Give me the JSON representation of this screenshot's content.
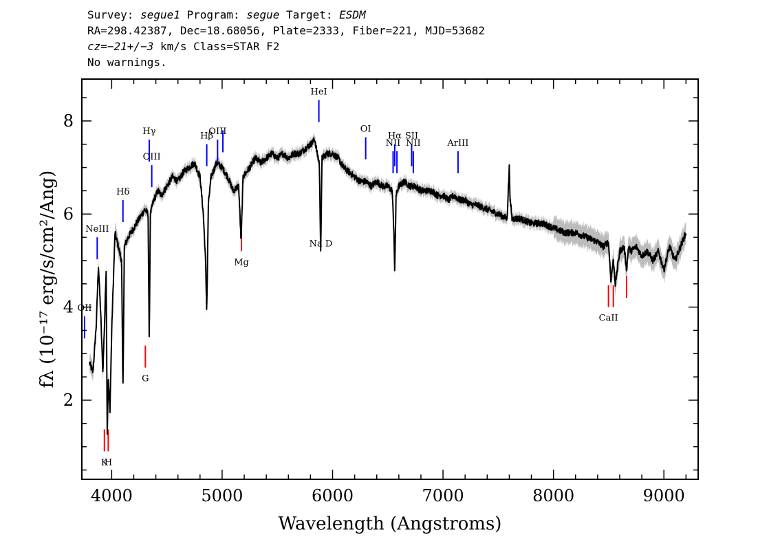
{
  "header": {
    "line1": {
      "survey_label": "Survey:",
      "survey": "segue1",
      "program_label": "Program:",
      "program": "segue",
      "target_label": "Target:",
      "target": "ESDM"
    },
    "line2": "RA=298.42387, Dec=18.68056, Plate=2333, Fiber=221, MJD=53682",
    "line3": {
      "cz": "cz=−21+/−3",
      "rest": " km/s Class=STAR F2"
    },
    "line4": "No warnings."
  },
  "colors": {
    "spectrum": "#000000",
    "error_band": "#bcbcbc",
    "emission": "#0000ff",
    "absorption": "#ff0000"
  },
  "chart_data": {
    "type": "line",
    "xlabel": "Wavelength (Angstroms)",
    "ylabel": "fλ (10⁻¹⁷ erg/s/cm²/Ang)",
    "xlim": [
      3730,
      9310
    ],
    "ylim": [
      0.3,
      8.9
    ],
    "x_ticks": [
      4000,
      5000,
      6000,
      7000,
      8000,
      9000
    ],
    "y_ticks": [
      2,
      4,
      6,
      8
    ],
    "series": [
      {
        "x": [
          3800,
          3830,
          3860,
          3880,
          3900,
          3920,
          3935,
          3950,
          3960,
          3970,
          3985,
          4000,
          4030,
          4060,
          4090,
          4102,
          4115,
          4150,
          4200,
          4250,
          4300,
          4330,
          4340,
          4350,
          4380,
          4420,
          4450,
          4500,
          4550,
          4600,
          4650,
          4700,
          4750,
          4800,
          4830,
          4850,
          4861,
          4875,
          4900,
          4950,
          5000,
          5050,
          5100,
          5150,
          5172,
          5190,
          5250,
          5300,
          5350,
          5400,
          5450,
          5500,
          5550,
          5600,
          5650,
          5700,
          5750,
          5800,
          5840,
          5860,
          5880,
          5893,
          5905,
          5950,
          6000,
          6050,
          6100,
          6150,
          6200,
          6250,
          6300,
          6350,
          6400,
          6450,
          6500,
          6540,
          6556,
          6563,
          6575,
          6600,
          6650,
          6700,
          6750,
          6800,
          6850,
          6900,
          6950,
          7000,
          7050,
          7100,
          7150,
          7200,
          7250,
          7300,
          7400,
          7500,
          7580,
          7600,
          7608,
          7625,
          7700,
          7800,
          7900,
          8000,
          8100,
          8200,
          8300,
          8400,
          8450,
          8498,
          8520,
          8542,
          8560,
          8600,
          8640,
          8662,
          8680,
          8700,
          8750,
          8800,
          8850,
          8900,
          8950,
          9000,
          9050,
          9100,
          9150,
          9200
        ],
        "y": [
          2.8,
          2.6,
          3.6,
          4.9,
          3.9,
          2.6,
          3.6,
          4.8,
          1.3,
          2.4,
          1.8,
          3.5,
          5.6,
          5.3,
          5.0,
          2.2,
          5.3,
          5.5,
          5.7,
          5.9,
          6.1,
          6.0,
          3.3,
          6.0,
          6.3,
          6.5,
          6.4,
          6.6,
          6.8,
          6.7,
          6.9,
          7.0,
          7.1,
          6.8,
          6.0,
          5.0,
          3.9,
          6.2,
          6.8,
          7.1,
          7.0,
          6.8,
          6.5,
          6.6,
          5.4,
          6.8,
          7.0,
          7.2,
          7.1,
          7.2,
          7.3,
          7.2,
          7.3,
          7.2,
          7.3,
          7.3,
          7.4,
          7.5,
          7.6,
          7.3,
          7.1,
          5.2,
          7.2,
          7.3,
          7.3,
          7.2,
          7.0,
          6.9,
          6.8,
          6.7,
          6.7,
          6.6,
          6.7,
          6.6,
          6.6,
          6.5,
          5.6,
          4.7,
          6.4,
          6.6,
          6.7,
          6.6,
          6.6,
          6.5,
          6.5,
          6.5,
          6.4,
          6.4,
          6.3,
          6.4,
          6.3,
          6.3,
          6.2,
          6.2,
          6.1,
          6.0,
          5.9,
          7.0,
          6.3,
          5.9,
          5.9,
          5.8,
          5.8,
          5.7,
          5.6,
          5.6,
          5.5,
          5.4,
          5.3,
          5.4,
          4.6,
          5.0,
          4.5,
          5.2,
          5.3,
          4.8,
          5.3,
          5.2,
          5.3,
          5.1,
          5.2,
          5.0,
          5.2,
          4.8,
          5.3,
          5.0,
          5.3,
          5.6
        ]
      }
    ],
    "emission_lines": [
      {
        "name": "OII",
        "wave": 3727,
        "y": 3.8
      },
      {
        "name": "NeIII",
        "wave": 3869,
        "y": 5.5
      },
      {
        "name": "Hδ",
        "wave": 4102,
        "y": 6.3
      },
      {
        "name": "Hγ",
        "wave": 4340,
        "y": 7.6
      },
      {
        "name": "OIII",
        "wave": 4363,
        "y": 7.05
      },
      {
        "name": "Hβ",
        "wave": 4861,
        "y": 7.5
      },
      {
        "name": "OIII",
        "wave": 4959,
        "y": 7.6
      },
      {
        "name": "",
        "wave": 5007,
        "y": 7.8
      },
      {
        "name": "HeI",
        "wave": 5876,
        "y": 8.45
      },
      {
        "name": "OI",
        "wave": 6300,
        "y": 7.65
      },
      {
        "name": "NII",
        "wave": 6548,
        "y": 7.35
      },
      {
        "name": "Hα",
        "wave": 6563,
        "y": 7.5
      },
      {
        "name": "",
        "wave": 6583,
        "y": 7.35
      },
      {
        "name": "SII",
        "wave": 6716,
        "y": 7.5
      },
      {
        "name": "NII",
        "wave": 6731,
        "y": 7.35
      },
      {
        "name": "ArIII",
        "wave": 7136,
        "y": 7.35
      }
    ],
    "absorption_lines": [
      {
        "name": "K",
        "wave": 3934,
        "y": 0.9
      },
      {
        "name": "H",
        "wave": 3969,
        "y": 0.9
      },
      {
        "name": "G",
        "wave": 4305,
        "y": 2.7
      },
      {
        "name": "Mg",
        "wave": 5175,
        "y": 5.2
      },
      {
        "name": "Na D",
        "wave": 5894,
        "y": 5.6
      },
      {
        "name": "CaII",
        "wave": 8498,
        "y": 4.0
      },
      {
        "name": "",
        "wave": 8542,
        "y": 4.0
      },
      {
        "name": "",
        "wave": 8662,
        "y": 4.2
      }
    ]
  }
}
